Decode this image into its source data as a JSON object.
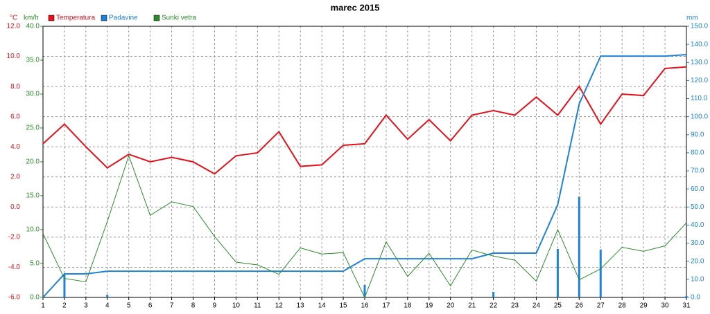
{
  "chart_data": {
    "type": "line",
    "title": "marec 2015",
    "x": [
      1,
      2,
      3,
      4,
      5,
      6,
      7,
      8,
      9,
      10,
      11,
      12,
      13,
      14,
      15,
      16,
      17,
      18,
      19,
      20,
      21,
      22,
      23,
      24,
      25,
      26,
      27,
      28,
      29,
      30,
      31
    ],
    "xlim": [
      1,
      31
    ],
    "xticks": [
      1,
      2,
      3,
      4,
      5,
      6,
      7,
      8,
      9,
      10,
      11,
      12,
      13,
      14,
      15,
      16,
      17,
      18,
      19,
      20,
      21,
      22,
      23,
      24,
      25,
      26,
      27,
      28,
      29,
      30,
      31
    ],
    "y_unit": "°C",
    "y3_unit": "km/h",
    "y2_unit": "mm",
    "ylim": [
      -6,
      12
    ],
    "yticks": [
      {
        "value": -6,
        "label": "-6.0"
      },
      {
        "value": -4,
        "label": "-4.0"
      },
      {
        "value": -2,
        "label": "-2.0"
      },
      {
        "value": 0,
        "label": "0.0"
      },
      {
        "value": 2,
        "label": "2.0"
      },
      {
        "value": 4,
        "label": "4.0"
      },
      {
        "value": 6,
        "label": "6.0"
      },
      {
        "value": 8,
        "label": "8.0"
      },
      {
        "value": 10,
        "label": "10.0"
      },
      {
        "value": 12,
        "label": "12.0"
      }
    ],
    "y3lim": [
      0,
      40
    ],
    "y3ticks": [
      {
        "value": 0,
        "label": "0.0"
      },
      {
        "value": 5,
        "label": "5.0"
      },
      {
        "value": 10,
        "label": "10.0"
      },
      {
        "value": 15,
        "label": "15.0"
      },
      {
        "value": 20,
        "label": "20.0"
      },
      {
        "value": 25,
        "label": "25.0"
      },
      {
        "value": 30,
        "label": "30.0"
      },
      {
        "value": 35,
        "label": "35.0"
      },
      {
        "value": 40,
        "label": "40.0"
      }
    ],
    "y2lim": [
      0,
      150
    ],
    "y2ticks": [
      {
        "value": 0,
        "label": "0.0"
      },
      {
        "value": 10,
        "label": "10.0"
      },
      {
        "value": 20,
        "label": "20.0"
      },
      {
        "value": 30,
        "label": "30.0"
      },
      {
        "value": 40,
        "label": "40.0"
      },
      {
        "value": 50,
        "label": "50.0"
      },
      {
        "value": 60,
        "label": "60.0"
      },
      {
        "value": 70,
        "label": "70.0"
      },
      {
        "value": 80,
        "label": "80.0"
      },
      {
        "value": 90,
        "label": "90.0"
      },
      {
        "value": 100,
        "label": "100.0"
      },
      {
        "value": 110,
        "label": "110.0"
      },
      {
        "value": 120,
        "label": "120.0"
      },
      {
        "value": 130,
        "label": "130.0"
      },
      {
        "value": 140,
        "label": "140.0"
      },
      {
        "value": 150,
        "label": "150.0"
      }
    ],
    "grid": true,
    "series": [
      {
        "name": "Temperatura",
        "color": "#e8101a",
        "axis": "y",
        "values": [
          4.2,
          5.5,
          4.0,
          2.6,
          3.5,
          3.0,
          3.3,
          3.0,
          2.2,
          3.4,
          3.6,
          5.0,
          2.7,
          2.8,
          4.1,
          4.2,
          6.1,
          4.5,
          5.8,
          4.4,
          6.1,
          6.4,
          6.1,
          7.3,
          6.1,
          8.0,
          5.5,
          7.5,
          7.4,
          9.2,
          9.3
        ]
      },
      {
        "name": "Padavine",
        "color": "#1e82dc",
        "axis": "y2",
        "values": [
          0,
          13.0,
          13.0,
          14.5,
          14.5,
          14.5,
          14.5,
          14.5,
          14.5,
          14.5,
          14.5,
          14.5,
          14.5,
          14.5,
          14.5,
          21.4,
          21.4,
          21.4,
          21.4,
          21.4,
          21.4,
          24.5,
          24.5,
          24.5,
          51.3,
          107.0,
          133.5,
          133.5,
          133.5,
          133.5,
          134.3
        ]
      },
      {
        "name": "Sunki vetra",
        "color": "#2a8c2a",
        "axis": "y3",
        "values": [
          9.4,
          2.8,
          2.3,
          11.2,
          20.9,
          12.1,
          14.1,
          13.4,
          9.0,
          5.2,
          4.8,
          3.4,
          7.3,
          6.4,
          6.6,
          0,
          8.2,
          3.1,
          6.5,
          1.7,
          7.0,
          6.1,
          5.5,
          2.4,
          10.0,
          2.6,
          4.2,
          7.4,
          6.8,
          7.6,
          11.0
        ]
      }
    ],
    "daily_bars": {
      "color": "#1e82dc",
      "axis": "y2",
      "values": [
        0,
        13.0,
        0,
        1.5,
        0,
        0,
        0,
        0,
        0,
        0,
        0,
        0,
        0,
        0,
        0,
        6.9,
        0,
        0,
        0,
        0,
        0,
        3.1,
        0,
        0,
        26.8,
        55.7,
        26.5,
        0,
        0,
        0,
        0.8
      ]
    }
  }
}
